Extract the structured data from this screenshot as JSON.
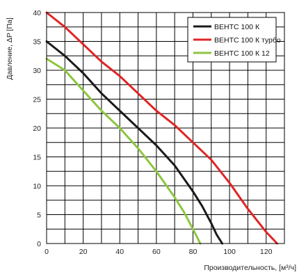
{
  "chart_data": {
    "type": "line",
    "xlabel": "Производительность, [м³/ч]",
    "ylabel": "Давление, ΔP [Па]",
    "xlim": [
      0,
      130
    ],
    "ylim": [
      0,
      40
    ],
    "x_ticks": [
      0,
      20,
      40,
      60,
      80,
      100,
      120
    ],
    "y_ticks": [
      0,
      5,
      10,
      15,
      20,
      25,
      30,
      35,
      40
    ],
    "grid": true,
    "legend_position": "top-right",
    "series": [
      {
        "name": "ВЕНТС 100 К",
        "color": "#1a1a1a",
        "x": [
          0,
          10,
          20,
          30,
          40,
          50,
          60,
          70,
          80,
          85,
          90,
          93,
          96
        ],
        "y": [
          35,
          32.5,
          29.5,
          26,
          23,
          20,
          17,
          13.5,
          9,
          6.5,
          3.5,
          1.5,
          0
        ]
      },
      {
        "name": "ВЕНТС 100 К турбо",
        "color": "#e02424",
        "x": [
          0,
          10,
          20,
          30,
          40,
          50,
          60,
          70,
          80,
          90,
          100,
          110,
          120,
          126
        ],
        "y": [
          40,
          37.5,
          34.5,
          31.5,
          29,
          26,
          23,
          20.5,
          17.5,
          14.5,
          10.5,
          6,
          2,
          0
        ]
      },
      {
        "name": "ВЕНТС 100 К 12",
        "color": "#8cc63f",
        "x": [
          0,
          10,
          20,
          30,
          40,
          50,
          60,
          70,
          75,
          80,
          84
        ],
        "y": [
          32,
          30,
          26.5,
          23,
          20,
          16.5,
          12.5,
          8,
          5.5,
          2.5,
          0
        ]
      }
    ]
  }
}
